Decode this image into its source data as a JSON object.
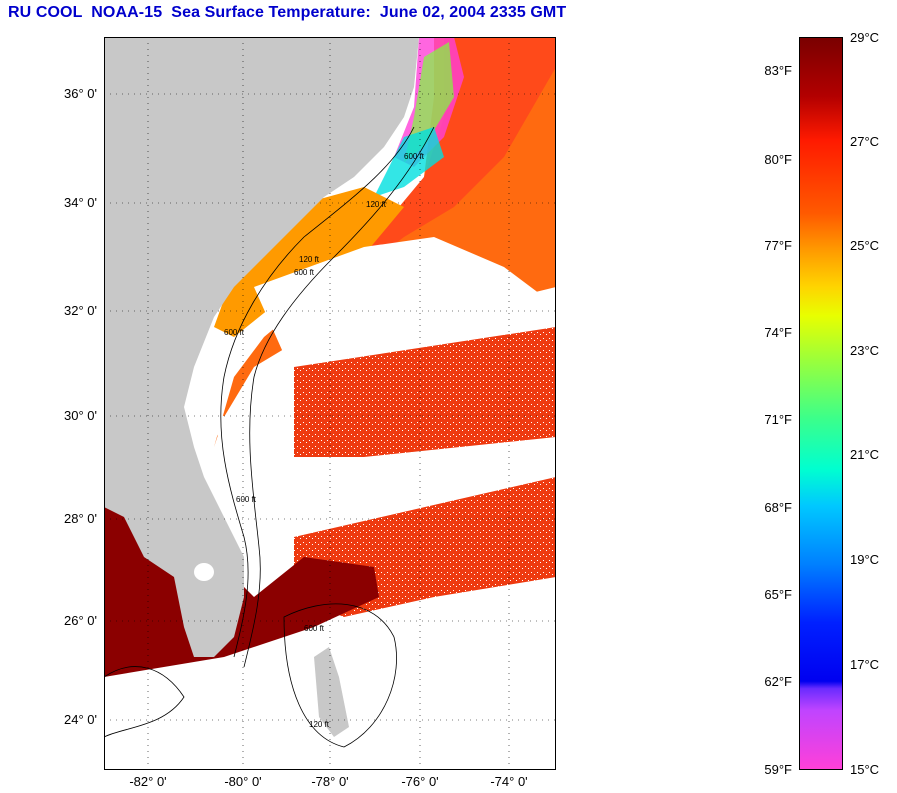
{
  "title": "RU COOL  NOAA-15  Sea Surface Temperature:  June 02, 2004 2335 GMT",
  "map": {
    "lat_labels": [
      "36° 0'",
      "34° 0'",
      "32° 0'",
      "30° 0'",
      "28° 0'",
      "26° 0'",
      "24° 0'"
    ],
    "lon_labels": [
      "-82° 0'",
      "-80° 0'",
      "-78° 0'",
      "-76° 0'",
      "-74° 0'"
    ],
    "contour_labels": [
      "600 ft",
      "120 ft",
      "600 ft",
      "120 ft",
      "600 ft",
      "600 ft",
      "120 ft",
      "600 ft"
    ],
    "colors": {
      "land": "#c8c8c8",
      "cloud": "#ffffff",
      "warm_sst": "#ff5010",
      "hot_sst": "#8b0000"
    }
  },
  "legend": {
    "fahrenheit": [
      "83°F",
      "80°F",
      "77°F",
      "74°F",
      "71°F",
      "68°F",
      "65°F",
      "62°F",
      "59°F"
    ],
    "celsius": [
      "29°C",
      "27°C",
      "25°C",
      "23°C",
      "21°C",
      "19°C",
      "17°C",
      "15°C"
    ]
  }
}
